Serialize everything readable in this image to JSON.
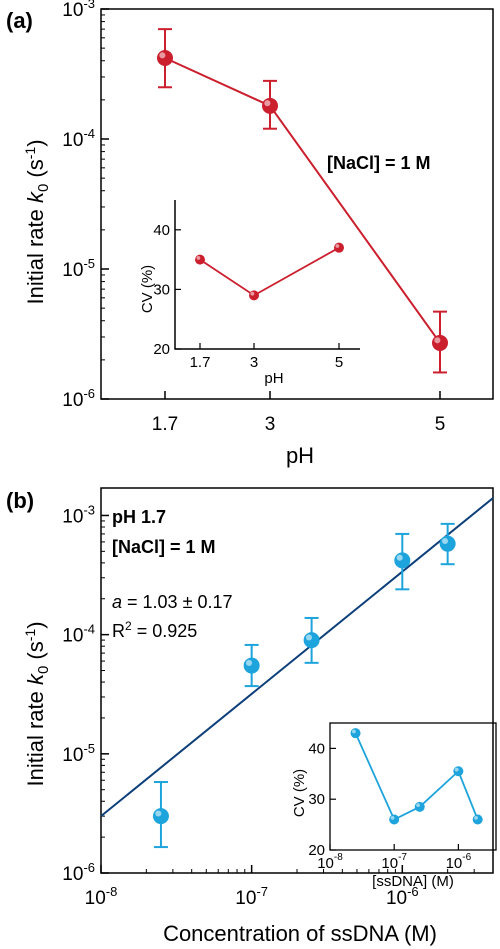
{
  "colors": {
    "red": "#cc1f2e",
    "blue": "#1ea4dc",
    "fit": "#0d3f7a",
    "annoBlue": "#1e6ab0"
  },
  "chart_data": [
    {
      "panel": "(a)",
      "type": "line",
      "xlabel": "pH",
      "ylabel": {
        "main": "Initial rate ",
        "var": "k",
        "sub": "0",
        "unit_open": " (s",
        "unit_sup": "-1",
        "unit_close": ")"
      },
      "y_scale": "log",
      "ylim": [
        1e-06,
        0.001
      ],
      "y_ticks": [
        {
          "value": 0.001,
          "base": "10",
          "exp": "-3"
        },
        {
          "value": 0.0001,
          "base": "10",
          "exp": "-4"
        },
        {
          "value": 1e-05,
          "base": "10",
          "exp": "-5"
        },
        {
          "value": 1e-06,
          "base": "10",
          "exp": "-6"
        }
      ],
      "x_ticks": [
        "1.7",
        "3",
        "5"
      ],
      "series": [
        {
          "x": [
            1.7,
            3,
            5
          ],
          "y": [
            0.00042,
            0.00018,
            2.7e-06
          ],
          "y_low": [
            0.00025,
            0.00012,
            1.6e-06
          ],
          "y_high": [
            0.0007,
            0.00028,
            4.7e-06
          ]
        }
      ],
      "annotation": "[NaCl] = 1 M",
      "inset": {
        "type": "line",
        "xlabel": "pH",
        "ylabel": "CV (%)",
        "ylim": [
          20,
          45
        ],
        "y_ticks": [
          "20",
          "30",
          "40"
        ],
        "x_ticks": [
          "1.7",
          "3",
          "5"
        ],
        "x": [
          1.7,
          3,
          5
        ],
        "y": [
          35,
          29,
          37
        ]
      }
    },
    {
      "panel": "(b)",
      "type": "scatter",
      "xlabel": "Concentration of ssDNA (M)",
      "ylabel": {
        "main": "Initial rate ",
        "var": "k",
        "sub": "0",
        "unit_open": " (s",
        "unit_sup": "-1",
        "unit_close": ")"
      },
      "x_scale": "log",
      "y_scale": "log",
      "xlim": [
        1e-08,
        4e-06
      ],
      "ylim": [
        1e-06,
        0.0017
      ],
      "x_ticks": [
        {
          "value": 1e-08,
          "base": "10",
          "exp": "-8"
        },
        {
          "value": 1e-07,
          "base": "10",
          "exp": "-7"
        },
        {
          "value": 1e-06,
          "base": "10",
          "exp": "-6"
        }
      ],
      "y_ticks": [
        {
          "value": 0.001,
          "base": "10",
          "exp": "-3"
        },
        {
          "value": 0.0001,
          "base": "10",
          "exp": "-4"
        },
        {
          "value": 1e-05,
          "base": "10",
          "exp": "-5"
        },
        {
          "value": 1e-06,
          "base": "10",
          "exp": "-6"
        }
      ],
      "series": [
        {
          "x": [
            2.5e-08,
            1e-07,
            2.5e-07,
            1e-06,
            2e-06
          ],
          "y": [
            3e-06,
            5.5e-05,
            9e-05,
            0.00042,
            0.00058
          ],
          "y_low": [
            1.65e-06,
            3.7e-05,
            5.8e-05,
            0.00024,
            0.00039
          ],
          "y_high": [
            5.8e-06,
            8.2e-05,
            0.000138,
            0.0007,
            0.00085
          ]
        }
      ],
      "fit_line": {
        "x": [
          1e-08,
          4e-06
        ],
        "y": [
          3e-06,
          0.0014
        ]
      },
      "annotation_lines": [
        "pH 1.7",
        "[NaCl] = 1 M"
      ],
      "fit_text": {
        "a_var": "a",
        "a_rest": " = 1.03 ± 0.17",
        "r_main": "R",
        "r_sup": "2",
        "r_rest": " = 0.925"
      },
      "inset": {
        "type": "line",
        "xlabel": "[ssDNA] (M)",
        "ylabel": "CV (%)",
        "x_scale": "log",
        "xlim": [
          1e-08,
          3e-06
        ],
        "ylim": [
          20,
          45
        ],
        "y_ticks": [
          "20",
          "30",
          "40"
        ],
        "x_ticks": [
          {
            "value": 1e-08,
            "base": "10",
            "exp": "-8"
          },
          {
            "value": 1e-07,
            "base": "10",
            "exp": "-7"
          },
          {
            "value": 1e-06,
            "base": "10",
            "exp": "-6"
          }
        ],
        "x": [
          2.5e-08,
          1e-07,
          2.5e-07,
          1e-06,
          2e-06
        ],
        "y": [
          43,
          26,
          28.5,
          35.5,
          26
        ]
      }
    }
  ]
}
